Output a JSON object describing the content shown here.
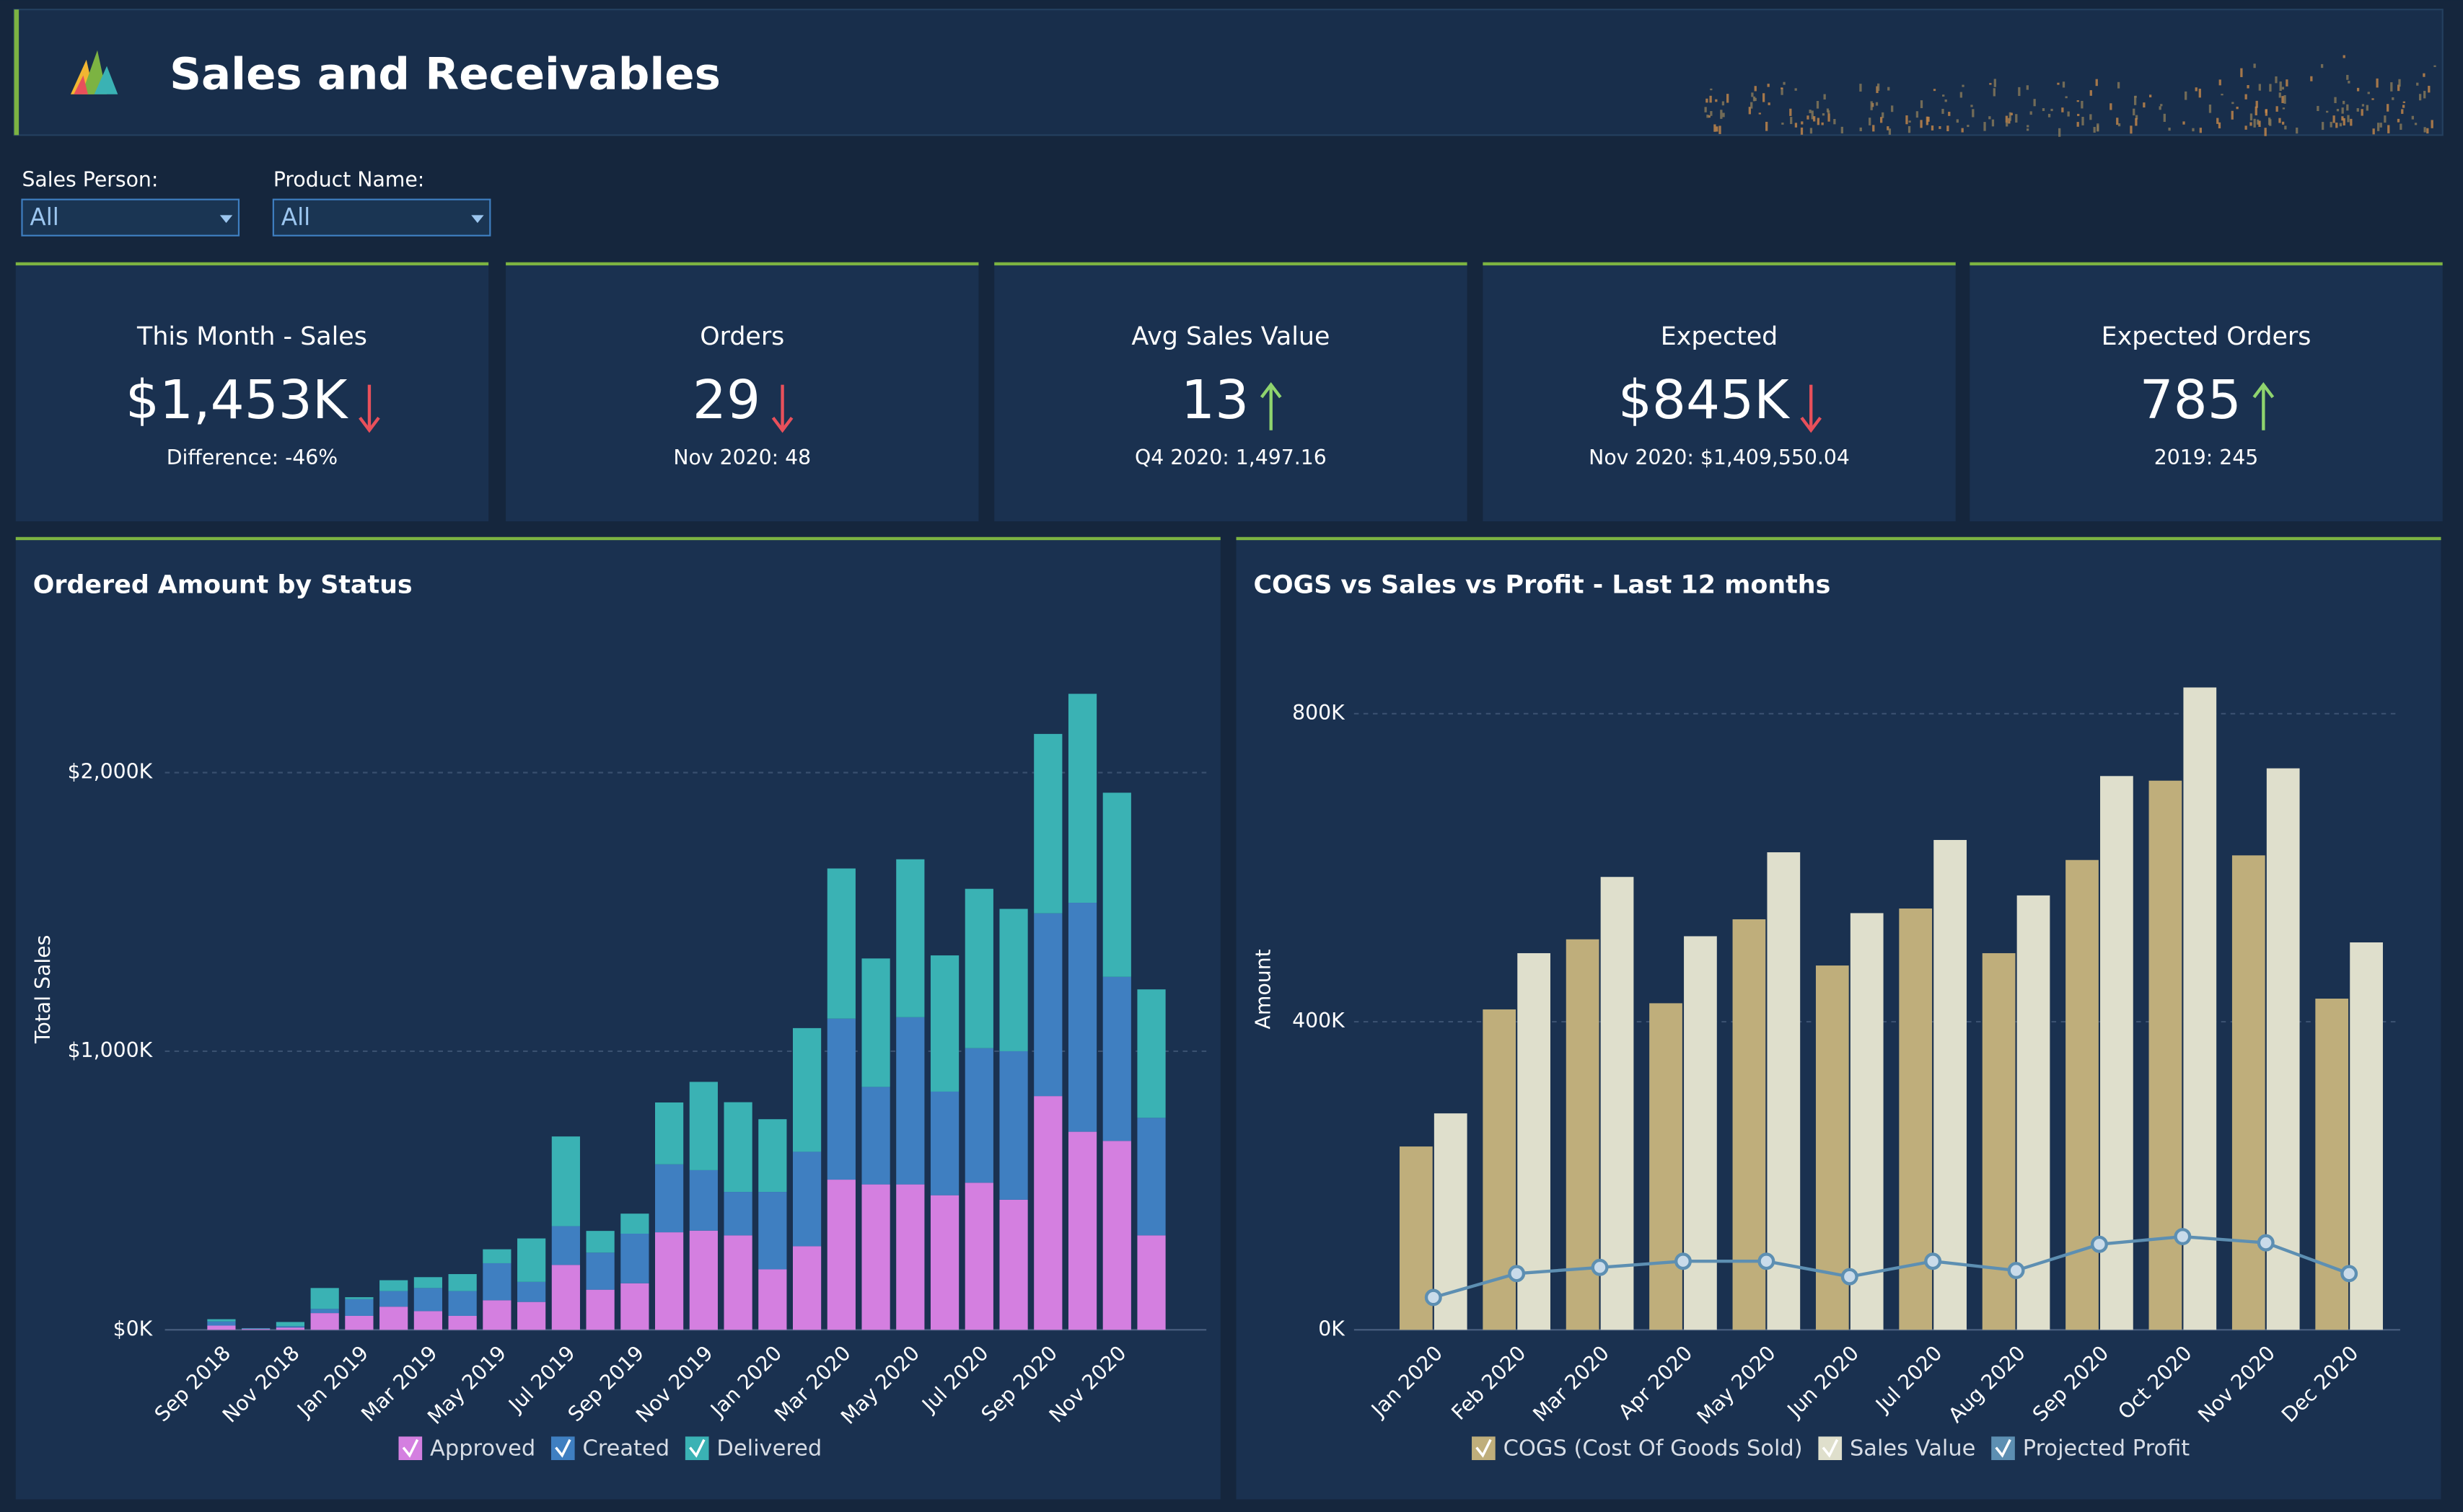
{
  "header": {
    "title": "Sales and Receivables"
  },
  "filters": [
    {
      "label": "Sales Person:",
      "value": "All"
    },
    {
      "label": "Product Name:",
      "value": "All"
    }
  ],
  "kpis": [
    {
      "title": "This Month - Sales",
      "value": "$1,453K",
      "trend": "down",
      "subtitle": "Difference: -46%"
    },
    {
      "title": "Orders",
      "value": "29",
      "trend": "down",
      "subtitle": "Nov 2020: 48"
    },
    {
      "title": "Avg Sales Value",
      "value": "13",
      "trend": "up",
      "subtitle": "Q4 2020: 1,497.16"
    },
    {
      "title": "Expected",
      "value": "$845K",
      "trend": "down",
      "subtitle": "Nov 2020: $1,409,550.04"
    },
    {
      "title": "Expected Orders",
      "value": "785",
      "trend": "up",
      "subtitle": "2019: 245"
    }
  ],
  "chart_data": [
    {
      "type": "stacked_bar",
      "title": "Ordered Amount by Status",
      "y_label": "Total Sales",
      "categories": [
        "Sep 2018",
        null,
        "Nov 2018",
        null,
        "Jan 2019",
        null,
        "Mar 2019",
        null,
        "May 2019",
        null,
        "Jul 2019",
        null,
        "Sep 2019",
        null,
        "Nov 2019",
        null,
        "Jan 2020",
        null,
        "Mar 2020",
        null,
        "May 2020",
        null,
        "Jul 2020",
        null,
        "Sep 2020",
        null,
        "Nov 2020",
        null
      ],
      "series": [
        {
          "name": "Approved",
          "color": "#d47fe0",
          "values": [
            15,
            3,
            8,
            60,
            50,
            83,
            67,
            50,
            106,
            100,
            233,
            144,
            167,
            350,
            356,
            339,
            217,
            300,
            539,
            522,
            522,
            483,
            528,
            467,
            839,
            711,
            678,
            339
          ]
        },
        {
          "name": "Created",
          "color": "#3f7fc1",
          "values": [
            15,
            2,
            5,
            15,
            60,
            56,
            83,
            89,
            133,
            72,
            139,
            133,
            178,
            244,
            217,
            156,
            278,
            339,
            578,
            350,
            600,
            372,
            483,
            533,
            656,
            822,
            589,
            422
          ]
        },
        {
          "name": "Delivered",
          "color": "#3ab2b4",
          "values": [
            8,
            1,
            15,
            75,
            7,
            39,
            39,
            61,
            50,
            156,
            322,
            78,
            72,
            222,
            317,
            322,
            261,
            444,
            539,
            461,
            567,
            489,
            572,
            511,
            644,
            750,
            661,
            461
          ]
        }
      ],
      "ylim": [
        0,
        2350
      ],
      "yticks": [
        {
          "value": 0,
          "label": "$0K"
        },
        {
          "value": 1000,
          "label": "$1,000K"
        },
        {
          "value": 2000,
          "label": "$2,000K"
        }
      ],
      "grid": true
    },
    {
      "type": "bar_line",
      "title": "COGS vs Sales vs Profit - Last 12 months",
      "y_label": "Amount",
      "categories": [
        "Jan 2020",
        "Feb 2020",
        "Mar 2020",
        "Apr 2020",
        "May 2020",
        "Jun 2020",
        "Jul 2020",
        "Aug 2020",
        "Sep 2020",
        "Oct 2020",
        "Nov 2020",
        "Dec 2020"
      ],
      "series": [
        {
          "name": "COGS (Cost Of Goods Sold)",
          "color": "#bfae7b",
          "mark": "bar",
          "values": [
            238,
            416,
            507,
            424,
            533,
            473,
            547,
            489,
            610,
            713,
            616,
            430
          ]
        },
        {
          "name": "Sales Value",
          "color": "#dfdfcc",
          "mark": "bar",
          "values": [
            281,
            489,
            588,
            511,
            620,
            541,
            636,
            564,
            719,
            834,
            729,
            503
          ]
        },
        {
          "name": "Projected Profit",
          "color": "#5d8fb2",
          "mark": "line",
          "values": [
            42,
            73,
            81,
            89,
            89,
            69,
            89,
            77,
            111,
            121,
            113,
            73
          ]
        }
      ],
      "ylim": [
        0,
        850
      ],
      "yticks": [
        {
          "value": 0,
          "label": "0K"
        },
        {
          "value": 400,
          "label": "400K"
        },
        {
          "value": 800,
          "label": "800K"
        }
      ],
      "grid": true
    }
  ]
}
